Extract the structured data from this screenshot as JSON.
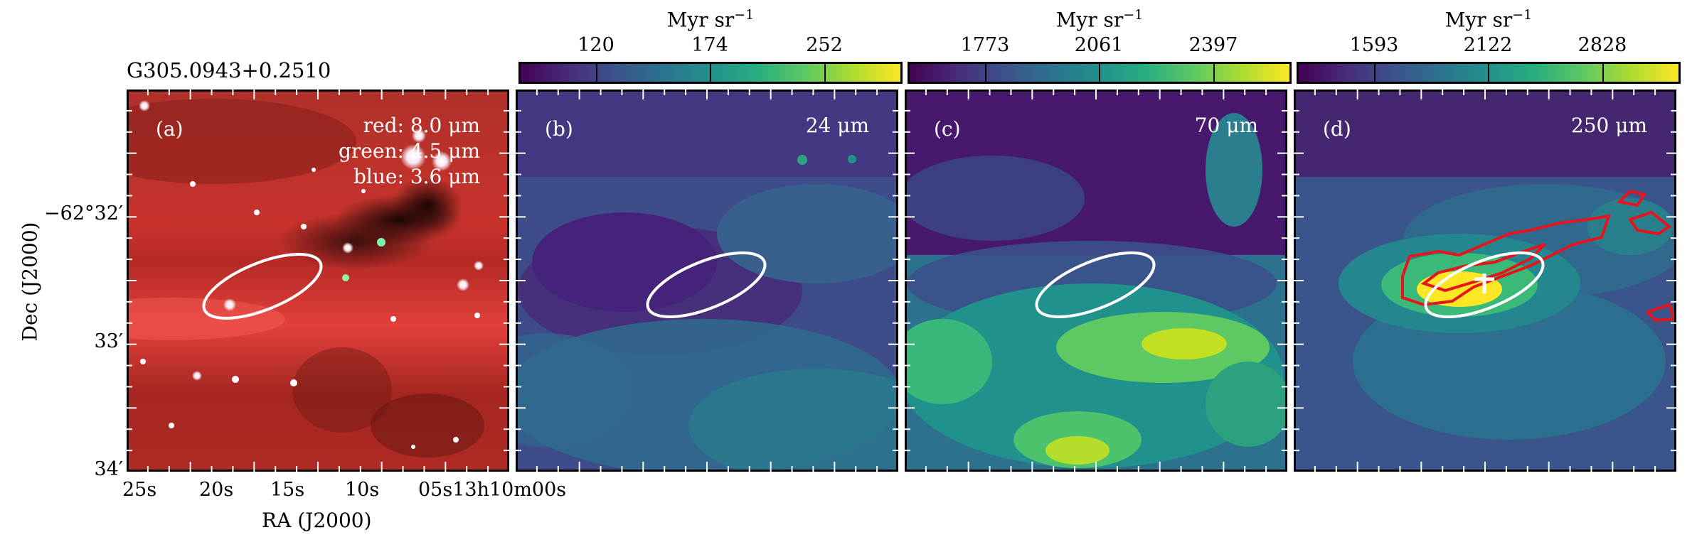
{
  "source_name": "G305.0943+0.2510",
  "panels": [
    {
      "id": "a",
      "label": "(a)",
      "legend": [
        "red: 8.0 μm",
        "green: 4.5 μm",
        "blue: 3.6 μm"
      ]
    },
    {
      "id": "b",
      "label": "(b)",
      "wavelength": "24 μm"
    },
    {
      "id": "c",
      "label": "(c)",
      "wavelength": "70 μm"
    },
    {
      "id": "d",
      "label": "(d)",
      "wavelength": "250 μm"
    }
  ],
  "colorbars": [
    {
      "title": "Myr sr",
      "exponent": "−1",
      "ticks": [
        "120",
        "174",
        "252"
      ]
    },
    {
      "title": "Myr sr",
      "exponent": "−1",
      "ticks": [
        "1773",
        "2061",
        "2397"
      ]
    },
    {
      "title": "Myr sr",
      "exponent": "−1",
      "ticks": [
        "1593",
        "2122",
        "2828"
      ]
    }
  ],
  "axes": {
    "xlabel": "RA (J2000)",
    "ylabel": "Dec (J2000)",
    "xticks": [
      "25s",
      "20s",
      "15s",
      "10s",
      "05s13h10m00s"
    ],
    "yticks": [
      "−62°32′",
      "33′",
      "34′"
    ]
  },
  "colors": {
    "viridis_low": "#440154",
    "viridis_mid": "#21918c",
    "viridis_high": "#fde725",
    "contour": "#e8141c",
    "ellipse": "#ffffff"
  }
}
